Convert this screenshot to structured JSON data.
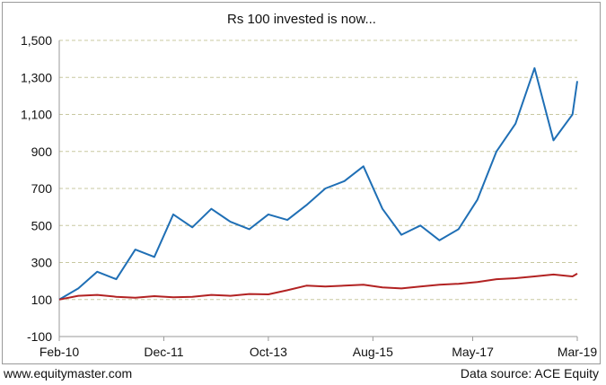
{
  "chart_data": {
    "type": "line",
    "title": "Rs 100 invested is now...",
    "xlabel": "",
    "ylabel": "",
    "x_tick_labels": [
      "Feb-10",
      "Dec-11",
      "Oct-13",
      "Aug-15",
      "May-17",
      "Mar-19"
    ],
    "x": [
      "Feb-10",
      "Jun-10",
      "Oct-10",
      "Feb-11",
      "Jun-11",
      "Oct-11",
      "Feb-12",
      "Jun-12",
      "Oct-12",
      "Feb-13",
      "Jun-13",
      "Oct-13",
      "Feb-14",
      "Jun-14",
      "Oct-14",
      "Feb-15",
      "Jun-15",
      "Oct-15",
      "Feb-16",
      "Jun-16",
      "Oct-16",
      "Feb-17",
      "Jun-17",
      "Oct-17",
      "Feb-18",
      "Jun-18",
      "Oct-18",
      "Feb-19",
      "Mar-19"
    ],
    "ylim": [
      -100,
      1500
    ],
    "yticks": [
      -100,
      100,
      300,
      500,
      700,
      900,
      1100,
      1300,
      1500
    ],
    "ytick_labels": [
      "-100",
      "100",
      "300",
      "500",
      "700",
      "900",
      "1,100",
      "1,300",
      "1,500"
    ],
    "grid": "horizontal dashed",
    "series": [
      {
        "color": "#1f6fb5",
        "values": [
          100,
          160,
          250,
          210,
          370,
          330,
          560,
          490,
          590,
          520,
          480,
          560,
          530,
          610,
          700,
          740,
          820,
          590,
          450,
          500,
          420,
          480,
          640,
          900,
          1050,
          1350,
          960,
          1100,
          1280
        ]
      },
      {
        "color": "#b22222",
        "values": [
          100,
          120,
          125,
          115,
          110,
          118,
          112,
          115,
          125,
          120,
          130,
          128,
          150,
          175,
          170,
          175,
          180,
          165,
          160,
          170,
          180,
          185,
          195,
          210,
          215,
          225,
          235,
          225,
          240
        ]
      }
    ]
  },
  "footer": {
    "left": "www.equitymaster.com",
    "right": "Data source: ACE Equity"
  },
  "colors": {
    "gridline": "#c8c8a0",
    "axis": "#9a9a9a",
    "text": "#111111"
  }
}
